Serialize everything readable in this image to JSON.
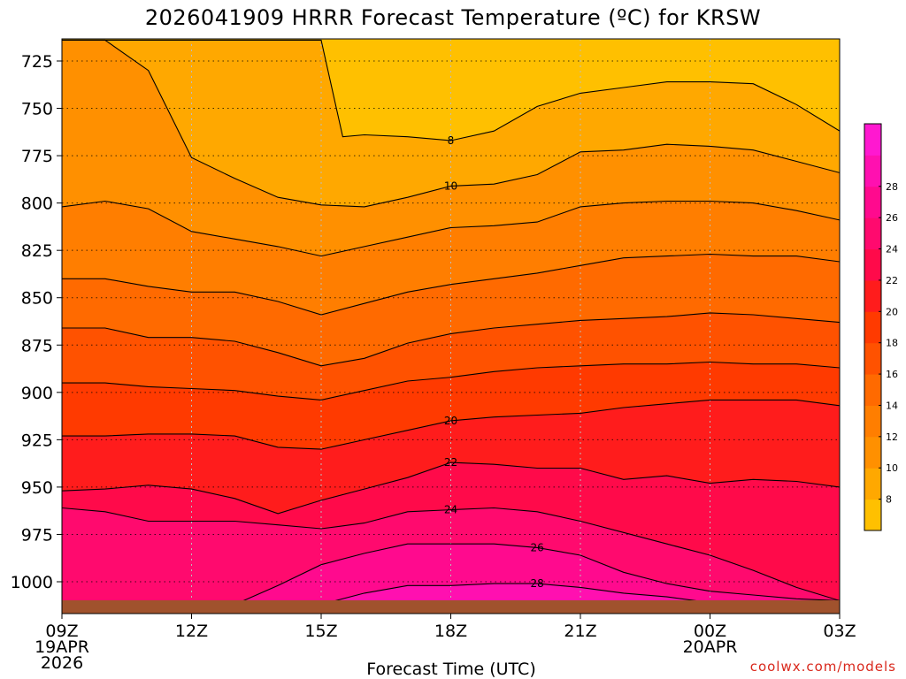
{
  "page": {
    "title": "2026041909 HRRR Forecast Temperature (ºC) for KRSW",
    "xlabel": "Forecast Time (UTC)",
    "credit": "coolwx.com/models"
  },
  "chart_data": {
    "type": "heatmap",
    "title": "2026041909 HRRR Forecast Temperature (ºC) for KRSW",
    "xlabel": "Forecast Time (UTC)",
    "ylabel": "",
    "x_ticks": [
      {
        "hour": 0,
        "label": "09Z",
        "sub": [
          "19APR",
          "2026"
        ]
      },
      {
        "hour": 3,
        "label": "12Z",
        "sub": []
      },
      {
        "hour": 6,
        "label": "15Z",
        "sub": []
      },
      {
        "hour": 9,
        "label": "18Z",
        "sub": []
      },
      {
        "hour": 12,
        "label": "21Z",
        "sub": []
      },
      {
        "hour": 15,
        "label": "00Z",
        "sub": [
          "20APR"
        ]
      },
      {
        "hour": 18,
        "label": "03Z",
        "sub": []
      }
    ],
    "xlim_hours": [
      0,
      18
    ],
    "y_ticks": [
      725,
      750,
      775,
      800,
      825,
      850,
      875,
      900,
      925,
      950,
      975,
      1000
    ],
    "ylim_hpa": [
      1012,
      714
    ],
    "grid": true,
    "colorbar": {
      "placement": "right",
      "ticks": [
        8,
        10,
        12,
        14,
        16,
        18,
        20,
        22,
        24,
        26,
        28
      ],
      "colors": [
        "#ffc000",
        "#ffa800",
        "#ff9000",
        "#ff7e00",
        "#ff6a00",
        "#ff5200",
        "#ff3a00",
        "#ff1c1c",
        "#ff0a4a",
        "#ff0a6e",
        "#ff0a8e",
        "#ff10b0",
        "#ff18d0"
      ]
    },
    "contour_levels": [
      {
        "level": 8,
        "label": "8",
        "hours": [
          0,
          1,
          2,
          3,
          4,
          5,
          6,
          6.5,
          7,
          8,
          9,
          10,
          11,
          12,
          13,
          14,
          15,
          16,
          17,
          18
        ],
        "hpa": [
          714,
          714,
          714,
          714,
          714,
          714,
          714,
          765,
          764,
          765,
          767,
          762,
          749,
          742,
          739,
          736,
          736,
          737,
          748,
          762
        ]
      },
      {
        "level": 10,
        "label": "10",
        "hours": [
          0,
          1,
          2,
          3,
          4,
          5,
          6,
          7,
          8,
          9,
          10,
          11,
          12,
          13,
          14,
          15,
          16,
          17,
          18
        ],
        "hpa": [
          714,
          714,
          730,
          776,
          787,
          797,
          801,
          802,
          797,
          791,
          790,
          785,
          773,
          772,
          769,
          770,
          772,
          778,
          784
        ]
      },
      {
        "level": 12,
        "label": "",
        "hours": [
          0,
          1,
          2,
          3,
          4,
          5,
          6,
          7,
          8,
          9,
          10,
          11,
          12,
          13,
          14,
          15,
          16,
          17,
          18
        ],
        "hpa": [
          802,
          799,
          803,
          815,
          819,
          823,
          828,
          823,
          818,
          813,
          812,
          810,
          802,
          800,
          799,
          799,
          800,
          804,
          809
        ]
      },
      {
        "level": 14,
        "label": "",
        "hours": [
          0,
          1,
          2,
          3,
          4,
          5,
          6,
          7,
          8,
          9,
          10,
          11,
          12,
          13,
          14,
          15,
          16,
          17,
          18
        ],
        "hpa": [
          840,
          840,
          844,
          847,
          847,
          852,
          859,
          853,
          847,
          843,
          840,
          837,
          833,
          829,
          828,
          827,
          828,
          828,
          831
        ]
      },
      {
        "level": 16,
        "label": "",
        "hours": [
          0,
          1,
          2,
          3,
          4,
          5,
          6,
          7,
          8,
          9,
          10,
          11,
          12,
          13,
          14,
          15,
          16,
          17,
          18
        ],
        "hpa": [
          866,
          866,
          871,
          871,
          873,
          879,
          886,
          882,
          874,
          869,
          866,
          864,
          862,
          861,
          860,
          858,
          859,
          861,
          863
        ]
      },
      {
        "level": 18,
        "label": "",
        "hours": [
          0,
          1,
          2,
          3,
          4,
          5,
          6,
          7,
          8,
          9,
          10,
          11,
          12,
          13,
          14,
          15,
          16,
          17,
          18
        ],
        "hpa": [
          895,
          895,
          897,
          898,
          899,
          902,
          904,
          899,
          894,
          892,
          889,
          887,
          886,
          885,
          885,
          884,
          885,
          885,
          887
        ]
      },
      {
        "level": 20,
        "label": "20",
        "hours": [
          0,
          1,
          2,
          3,
          4,
          5,
          6,
          7,
          8,
          9,
          10,
          11,
          12,
          13,
          14,
          15,
          16,
          17,
          18
        ],
        "hpa": [
          923,
          923,
          922,
          922,
          923,
          929,
          930,
          925,
          920,
          915,
          913,
          912,
          911,
          908,
          906,
          904,
          904,
          904,
          907
        ]
      },
      {
        "level": 22,
        "label": "22",
        "hours": [
          0,
          1,
          2,
          3,
          4,
          5,
          6,
          7,
          8,
          9,
          10,
          11,
          12,
          13,
          14,
          15,
          16,
          17,
          18
        ],
        "hpa": [
          952,
          951,
          949,
          951,
          956,
          964,
          957,
          951,
          945,
          937,
          938,
          940,
          940,
          946,
          944,
          948,
          946,
          947,
          950
        ]
      },
      {
        "level": 24,
        "label": "24",
        "hours": [
          0,
          1,
          2,
          3,
          4,
          5,
          6,
          7,
          8,
          9,
          10,
          11,
          12,
          13,
          14,
          15,
          16,
          17,
          18
        ],
        "hpa": [
          961,
          963,
          968,
          968,
          968,
          970,
          972,
          969,
          963,
          962,
          961,
          963,
          968,
          974,
          980,
          986,
          994,
          1003,
          1010
        ]
      },
      {
        "level": 26,
        "label": "26",
        "hours": [
          4,
          5,
          6,
          7,
          8,
          9,
          10,
          11,
          12,
          13,
          14,
          15,
          16,
          17,
          18
        ],
        "hpa": [
          1012,
          1002,
          991,
          985,
          980,
          980,
          980,
          982,
          986,
          995,
          1001,
          1005,
          1007,
          1009,
          1010
        ]
      },
      {
        "level": 28,
        "label": "28",
        "hours": [
          6,
          7,
          8,
          9,
          10,
          11,
          12,
          13,
          14,
          15
        ],
        "hpa": [
          1012,
          1006,
          1002,
          1002,
          1001,
          1001,
          1003,
          1006,
          1008,
          1011
        ]
      }
    ],
    "terrain": {
      "color": "#a0522d",
      "label": ""
    }
  }
}
